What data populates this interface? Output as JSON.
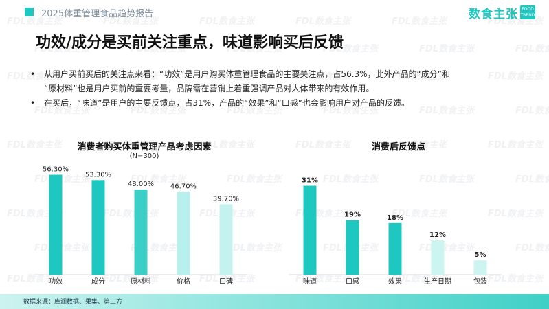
{
  "header": {
    "report_title": "2025体重管理食品趋势报告",
    "brand": "数食主张",
    "brand_tag": "FOOD TREND"
  },
  "main_title": "功效/成分是买前关注重点，味道影响买后反馈",
  "bullets": [
    {
      "text_line1": "从用户买前买后的关注点来看：“功效”是用户购买体重管理食品的主要关注点，占56.3%，此外产品的“成分”和",
      "text_line2": "“原材料”也是用户买前的重要考量，品牌需在营销上着重强调产品对人体带来的有效作用。"
    },
    {
      "text_line1": "在买后，“味道”是用户的主要反馈点，占31%，产品的“效果”和“口感”也会影响用户对产品的反馈。"
    }
  ],
  "watermark": "FDL数食主张",
  "footer": {
    "source": "数据来源：库润数据、果集、第三方"
  },
  "colors": {
    "accent": "#1ec8c0",
    "light": "#b7f0ec",
    "mid": "#7fe1da"
  },
  "chart_data": [
    {
      "type": "bar",
      "title": "消费者购买体重管理产品考虑因素",
      "subtitle": "(N=300)",
      "categories": [
        "功效",
        "成分",
        "原材料",
        "价格",
        "口碑"
      ],
      "values": [
        56.3,
        53.3,
        48.0,
        46.7,
        39.7
      ],
      "value_labels": [
        "56.30%",
        "53.30%",
        "48.00%",
        "46.70%",
        "39.70%"
      ],
      "bar_colors": [
        "#1ec8c0",
        "#1ec8c0",
        "#3ccfc7",
        "#b7f0ec",
        "#c4f3ef"
      ],
      "ylim": [
        0,
        60
      ]
    },
    {
      "type": "bar",
      "title": "消费后反馈点",
      "categories": [
        "味道",
        "口感",
        "效果",
        "生产日期",
        "包装"
      ],
      "values": [
        31,
        19,
        18,
        12,
        5
      ],
      "value_labels": [
        "31%",
        "19%",
        "18%",
        "12%",
        "5%"
      ],
      "bar_colors": [
        "#1ec8c0",
        "#1ec8c0",
        "#1ec8c0",
        "#ccf4f0",
        "#ccf4f0"
      ],
      "ylim": [
        0,
        34
      ]
    }
  ]
}
